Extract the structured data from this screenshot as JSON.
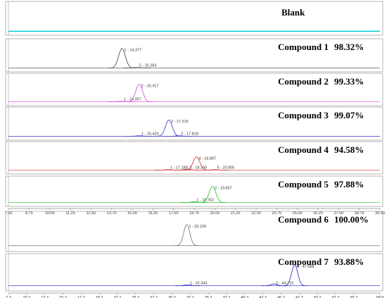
{
  "chart_data": [
    {
      "type": "chromatogram",
      "title": "Blank",
      "color": "#00c8d8",
      "xlim": [
        7.5,
        30.0
      ],
      "ylim": [
        -2.5,
        57.5
      ]
    },
    {
      "type": "chromatogram",
      "title": "Compound 1",
      "subtitle": "98.32%",
      "color": "#404040",
      "xlim": [
        7.5,
        30.0
      ],
      "ylim": [
        -2.5,
        57.5
      ],
      "peaks": [
        {
          "label": "1 - 14.377",
          "rt": 14.377,
          "height": 45
        },
        {
          "label": "2 - 15.283",
          "rt": 15.283,
          "height": 1
        }
      ]
    },
    {
      "type": "chromatogram",
      "title": "Compound 2",
      "subtitle": "99.33%",
      "color": "#e040e0",
      "xlim": [
        7.5,
        30.0
      ],
      "ylim": [
        -2.5,
        55.0
      ],
      "peaks": [
        {
          "label": "1 - 14.357",
          "rt": 14.357,
          "height": 1
        },
        {
          "label": "2 - 15.417",
          "rt": 15.417,
          "height": 40
        }
      ]
    },
    {
      "type": "chromatogram",
      "title": "Compound 3",
      "subtitle": "99.07%",
      "color": "#3030d0",
      "xlim": [
        7.5,
        30.0
      ],
      "ylim": [
        -2.5,
        55.0
      ],
      "peaks": [
        {
          "label": "1 - 15.420",
          "rt": 15.42,
          "height": 1
        },
        {
          "label": "2 - 17.215",
          "rt": 17.215,
          "height": 36
        },
        {
          "label": "3 - 17.818",
          "rt": 17.818,
          "height": 1
        }
      ]
    },
    {
      "type": "chromatogram",
      "title": "Compound 4",
      "subtitle": "94.58%",
      "color": "#d03030",
      "xlim": [
        7.5,
        30.0
      ],
      "ylim": [
        -2.5,
        55.0
      ],
      "peaks": [
        {
          "label": "1 - 17.180",
          "rt": 17.18,
          "height": 1
        },
        {
          "label": "3 - 18.339",
          "rt": 18.339,
          "height": 2
        },
        {
          "label": "4 - 18.887",
          "rt": 18.887,
          "height": 30
        },
        {
          "label": "5 - 20.005",
          "rt": 20.005,
          "height": 1
        }
      ]
    },
    {
      "type": "chromatogram",
      "title": "Compound 5",
      "subtitle": "97.88%",
      "color": "#20c020",
      "xlim": [
        7.5,
        30.0
      ],
      "ylim": [
        -2.5,
        55.0
      ],
      "peaks": [
        {
          "label": "1 - 18.762",
          "rt": 18.762,
          "height": 2
        },
        {
          "label": "2 - 19.857",
          "rt": 19.857,
          "height": 40
        }
      ],
      "xticks": [
        {
          "value": 7.5,
          "label": "7.50"
        },
        {
          "value": 8.75,
          "label": "8.75"
        },
        {
          "value": 10,
          "label": "10.00"
        },
        {
          "value": 11.25,
          "label": "11.25"
        },
        {
          "value": 12.5,
          "label": "12.50"
        },
        {
          "value": 13.75,
          "label": "13.75"
        },
        {
          "value": 15,
          "label": "15.00"
        },
        {
          "value": 16.25,
          "label": "16.25"
        },
        {
          "value": 17.5,
          "label": "17.50"
        },
        {
          "value": 18.75,
          "label": "18.75"
        },
        {
          "value": 20,
          "label": "20.00"
        },
        {
          "value": 21.25,
          "label": "21.25"
        },
        {
          "value": 22.5,
          "label": "22.50"
        },
        {
          "value": 23.75,
          "label": "23.75"
        },
        {
          "value": 25,
          "label": "25.00"
        },
        {
          "value": 26.25,
          "label": "26.25"
        },
        {
          "value": 27.5,
          "label": "27.50"
        },
        {
          "value": 28.75,
          "label": "28.75"
        },
        {
          "value": 30,
          "label": "30.00"
        }
      ]
    },
    {
      "type": "chromatogram",
      "title": "Compound 6",
      "subtitle": "100.00%",
      "color": "#707070",
      "xlim": [
        7.7,
        58.8
      ],
      "ylim": [
        -10,
        100
      ],
      "peaks": [
        {
          "label": "1 - 32.220",
          "rt": 32.22,
          "height": 70
        }
      ]
    },
    {
      "type": "chromatogram",
      "title": "Compound 7",
      "subtitle": "93.88%",
      "color": "#2020c0",
      "xlim": [
        7.7,
        58.8
      ],
      "ylim": [
        -5,
        60
      ],
      "peaks": [
        {
          "label": "1 - 32.343",
          "rt": 32.343,
          "height": 2
        },
        {
          "label": "2 - 44.215",
          "rt": 44.215,
          "height": 4
        },
        {
          "label": "1 - 47.068",
          "rt": 47.068,
          "height": 45
        }
      ],
      "xticks": [
        7.7,
        10.2,
        12.7,
        15.2,
        17.7,
        20.2,
        22.7,
        25.2,
        27.7,
        30.2,
        32.7,
        35.2,
        37.7,
        40.2,
        42.7,
        45.2,
        47.7,
        50.2,
        52.7,
        55.2,
        58.8
      ]
    }
  ]
}
